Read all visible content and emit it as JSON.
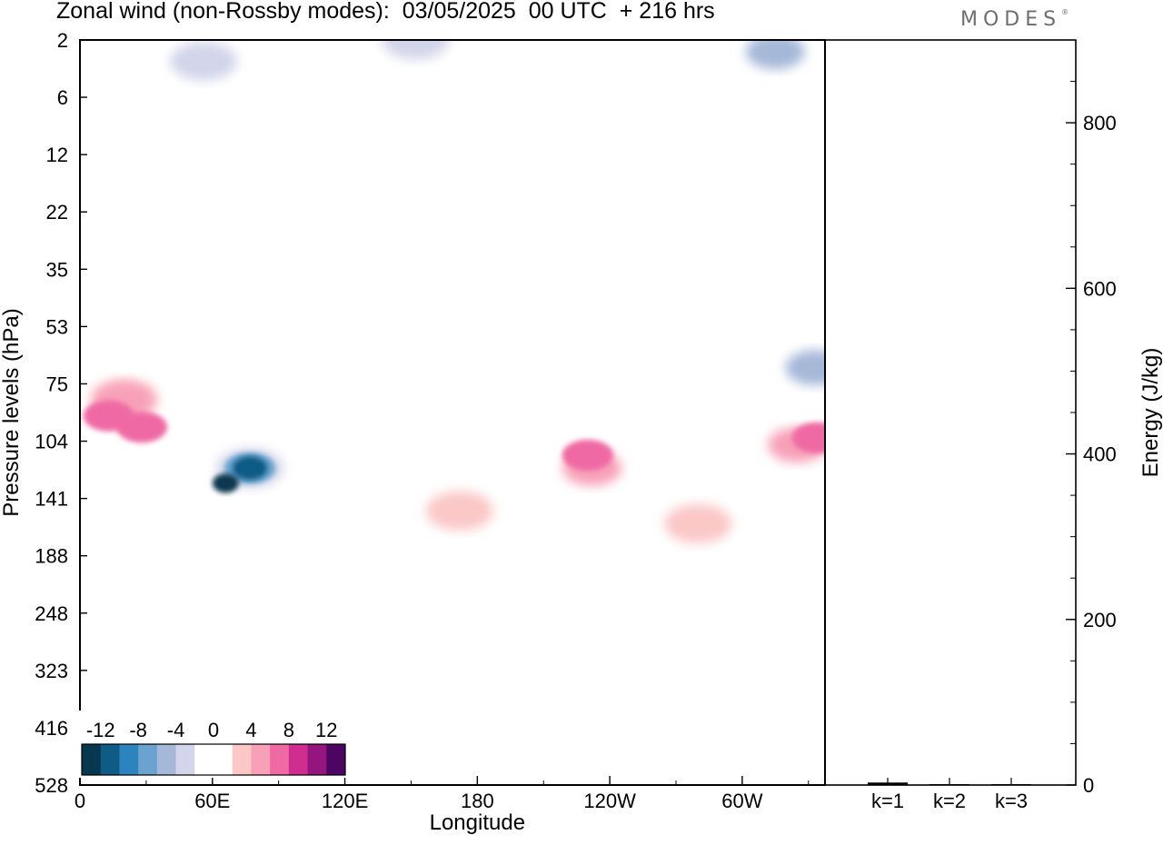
{
  "header": {
    "title": "Zonal wind (non-Rossby modes):  03/05/2025  00 UTC  + 216 hrs",
    "logo": "MODES",
    "logo_mark": "®"
  },
  "chart_data": [
    {
      "type": "heatmap",
      "title": "Zonal wind (non-Rossby modes):  03/05/2025  00 UTC  + 216 hrs",
      "xlabel": "Longitude",
      "ylabel": "Pressure levels (hPa)",
      "x_ticks": [
        "0",
        "60E",
        "120E",
        "180",
        "120W",
        "60W"
      ],
      "x_tick_positions_deg": [
        0,
        60,
        120,
        180,
        240,
        300
      ],
      "xlim": [
        0,
        337.5
      ],
      "y_ticks": [
        "2",
        "6",
        "12",
        "22",
        "35",
        "53",
        "75",
        "104",
        "141",
        "188",
        "248",
        "323",
        "416",
        "528"
      ],
      "y_inverted": true,
      "colorbar": {
        "labels": [
          "-12",
          "-8",
          "-4",
          "0",
          "4",
          "8",
          "12"
        ],
        "colors": [
          "#08384f",
          "#0e5b86",
          "#2c84be",
          "#6aa3cf",
          "#a5b8d8",
          "#d3d6ea",
          "#ffffff",
          "#ffffff",
          "#fbc7c7",
          "#f8a0b8",
          "#ef6aa4",
          "#cf2e8e",
          "#94157d",
          "#4d0462"
        ]
      },
      "colorbar_ticks_at_edges": [
        -12,
        -10,
        -8,
        -6,
        -4,
        -2,
        0,
        2,
        4,
        6,
        8,
        10,
        12
      ],
      "regions": [
        {
          "lon": 0,
          "lev": 4.5,
          "level": -1
        },
        {
          "lon": 40,
          "lev": 4.8,
          "level": 1
        },
        {
          "lon": 55,
          "lev": 3,
          "level": -1
        },
        {
          "lon": 56,
          "lev": 3,
          "level": -2
        },
        {
          "lon": 110,
          "lev": 5,
          "level": -1
        },
        {
          "lon": 150,
          "lev": 1.8,
          "level": -1
        },
        {
          "lon": 152,
          "lev": 1.6,
          "level": -2
        },
        {
          "lon": 300,
          "lev": 1.2,
          "level": 1
        },
        {
          "lon": 315,
          "lev": 2.5,
          "level": -1
        },
        {
          "lon": 315,
          "lev": 2.5,
          "level": -3
        },
        {
          "lon": 100,
          "lev": 7.5,
          "level": -1
        },
        {
          "lon": 120,
          "lev": 9,
          "level": -1
        },
        {
          "lon": 90,
          "lev": 21,
          "level": -1
        },
        {
          "lon": 3,
          "lev": 84,
          "level": 1
        },
        {
          "lon": 20,
          "lev": 82,
          "level": 2
        },
        {
          "lon": 20,
          "lev": 82,
          "level": 3
        },
        {
          "lon": 13,
          "lev": 90,
          "level": 4
        },
        {
          "lon": 28,
          "lev": 96,
          "level": 4
        },
        {
          "lon": 77,
          "lev": 120,
          "level": -1
        },
        {
          "lon": 77,
          "lev": 120,
          "level": -2
        },
        {
          "lon": 77,
          "lev": 120,
          "level": -4
        },
        {
          "lon": 77,
          "lev": 120,
          "level": -6
        },
        {
          "lon": 66,
          "lev": 130,
          "level": -7
        },
        {
          "lon": 180,
          "lev": 180,
          "level": 1
        },
        {
          "lon": 172,
          "lev": 150,
          "level": 2
        },
        {
          "lon": 232,
          "lev": 135,
          "level": 1
        },
        {
          "lon": 232,
          "lev": 120,
          "level": 3
        },
        {
          "lon": 230,
          "lev": 112,
          "level": 4
        },
        {
          "lon": 278,
          "lev": 160,
          "level": 1
        },
        {
          "lon": 280,
          "lev": 160,
          "level": 2
        },
        {
          "lon": 320,
          "lev": 108,
          "level": 1
        },
        {
          "lon": 325,
          "lev": 106,
          "level": 3
        },
        {
          "lon": 334,
          "lev": 102,
          "level": 4
        },
        {
          "lon": 320,
          "lev": 80,
          "level": -1
        },
        {
          "lon": 333,
          "lev": 68,
          "level": -3
        },
        {
          "lon": 232,
          "lev": 400,
          "level": 1
        },
        {
          "lon": 303,
          "lev": 390,
          "level": -1
        }
      ]
    },
    {
      "type": "bar",
      "categories": [
        "k=1",
        "k=2",
        "k=3"
      ],
      "values": [
        3,
        1,
        0.5
      ],
      "ylabel": "Energy (J/kg)",
      "ylim": [
        0,
        900
      ],
      "y_ticks": [
        "0",
        "200",
        "400",
        "600",
        "800"
      ]
    }
  ]
}
